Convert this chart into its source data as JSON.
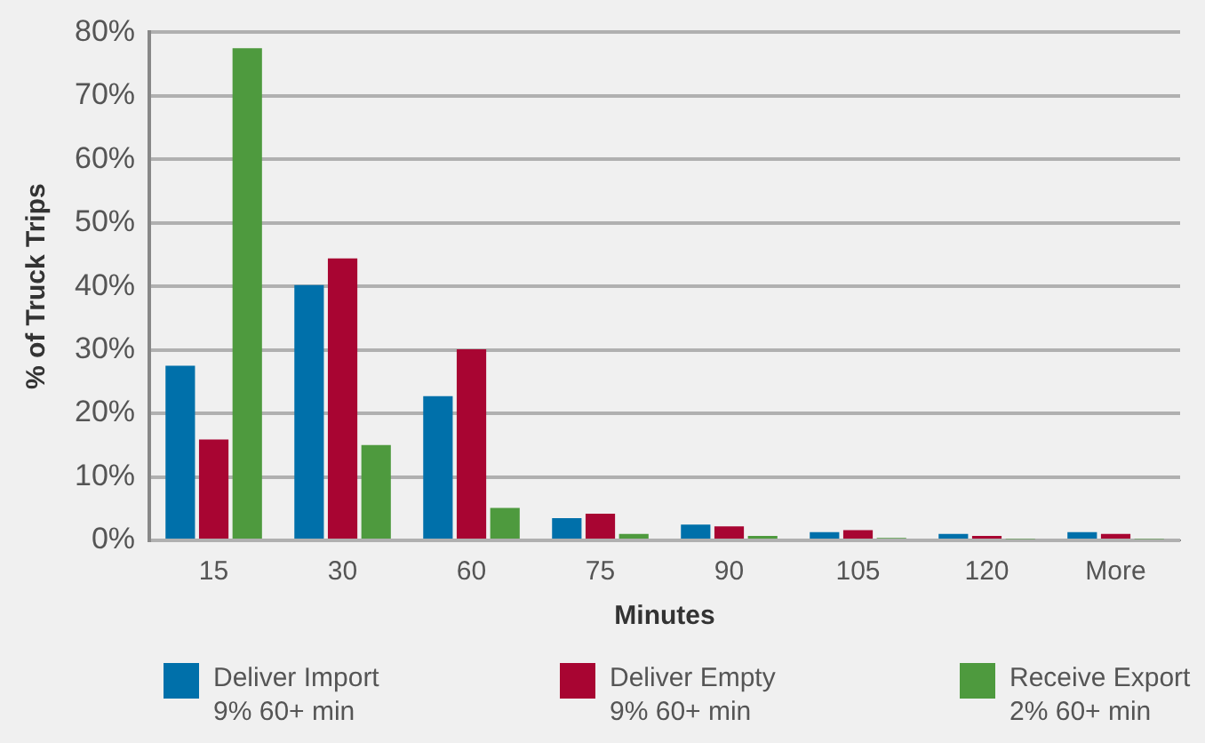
{
  "chart_data": {
    "type": "bar",
    "xlabel": "Minutes",
    "ylabel": "% of Truck Trips",
    "categories": [
      "15",
      "30",
      "60",
      "75",
      "90",
      "105",
      "120",
      "More"
    ],
    "series": [
      {
        "name": "Deliver Import\n9% 60+ min",
        "color": "#0070aa",
        "values": [
          27.5,
          40.2,
          22.7,
          3.5,
          2.5,
          1.3,
          1.0,
          1.3
        ]
      },
      {
        "name": "Deliver Empty\n9% 60+ min",
        "color": "#a80532",
        "values": [
          15.9,
          44.4,
          30.1,
          4.2,
          2.2,
          1.6,
          0.7,
          1.0
        ]
      },
      {
        "name": "Receive Export\n2% 60+ min",
        "color": "#4e9a3e",
        "values": [
          77.5,
          15.0,
          5.1,
          1.0,
          0.7,
          0.4,
          0.2,
          0.2
        ]
      }
    ],
    "ylim": [
      0,
      80
    ],
    "yticks": [
      {
        "value": 0,
        "label": "0%"
      },
      {
        "value": 10,
        "label": "10%"
      },
      {
        "value": 20,
        "label": "20%"
      },
      {
        "value": 30,
        "label": "30%"
      },
      {
        "value": 40,
        "label": "40%"
      },
      {
        "value": 50,
        "label": "50%"
      },
      {
        "value": 60,
        "label": "60%"
      },
      {
        "value": 70,
        "label": "70%"
      },
      {
        "value": 80,
        "label": "80%"
      }
    ],
    "grid": "y",
    "legend": "bottom"
  }
}
